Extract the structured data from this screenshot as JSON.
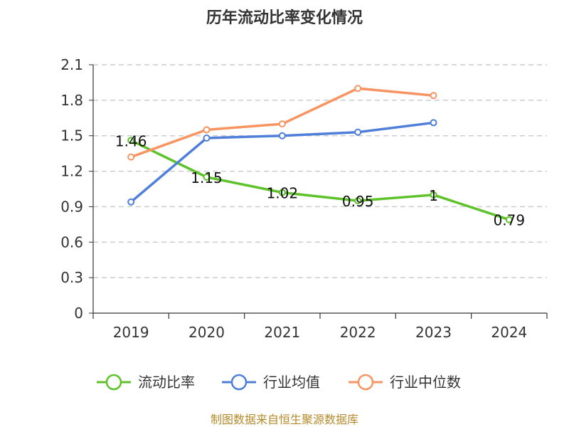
{
  "chart_data": {
    "type": "line",
    "title": "历年流动比率变化情况",
    "categories": [
      "2019",
      "2020",
      "2021",
      "2022",
      "2023",
      "2024"
    ],
    "ylim": [
      0,
      2.1
    ],
    "yticks": [
      "0",
      "0.3",
      "0.6",
      "0.9",
      "1.2",
      "1.5",
      "1.8",
      "2.1"
    ],
    "ytick_values": [
      0,
      0.3,
      0.6,
      0.9,
      1.2,
      1.5,
      1.8,
      2.1
    ],
    "grid": true,
    "legend_position": "bottom",
    "series": [
      {
        "name": "流动比率",
        "color": "#5ec22a",
        "values": [
          1.46,
          1.15,
          1.02,
          0.95,
          1,
          0.79
        ],
        "labels": [
          "1.46",
          "1.15",
          "1.02",
          "0.95",
          "1",
          "0.79"
        ],
        "show_labels": true
      },
      {
        "name": "行业均值",
        "color": "#4f7fd8",
        "values": [
          0.94,
          1.48,
          1.5,
          1.53,
          1.61,
          null
        ],
        "show_labels": false
      },
      {
        "name": "行业中位数",
        "color": "#f79462",
        "values": [
          1.32,
          1.55,
          1.6,
          1.9,
          1.84,
          null
        ],
        "show_labels": false
      }
    ]
  },
  "footer": "制图数据来自恒生聚源数据库"
}
